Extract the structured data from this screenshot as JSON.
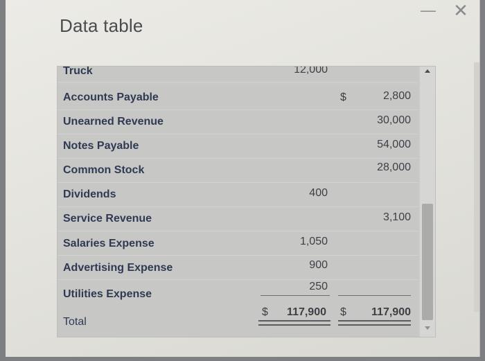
{
  "dialog": {
    "title": "Data table"
  },
  "window_controls": {
    "minimize": "—",
    "close": "✕"
  },
  "table": {
    "rows": [
      {
        "label": "Truck",
        "debit": "12,000",
        "credit": ""
      },
      {
        "label": "Accounts Payable",
        "debit": "",
        "credit_dollar": "$",
        "credit": "2,800"
      },
      {
        "label": "Unearned Revenue",
        "debit": "",
        "credit": "30,000"
      },
      {
        "label": "Notes Payable",
        "debit": "",
        "credit": "54,000"
      },
      {
        "label": "Common Stock",
        "debit": "",
        "credit": "28,000"
      },
      {
        "label": "Dividends",
        "debit": "400",
        "credit": ""
      },
      {
        "label": "Service Revenue",
        "debit": "",
        "credit": "3,100"
      },
      {
        "label": "Salaries Expense",
        "debit": "1,050",
        "credit": ""
      },
      {
        "label": "Advertising Expense",
        "debit": "900",
        "credit": ""
      },
      {
        "label": "Utilities Expense",
        "debit": "250",
        "credit": ""
      }
    ],
    "total": {
      "label": "Total",
      "debit_dollar": "$",
      "debit": "117,900",
      "credit_dollar": "$",
      "credit": "117,900"
    }
  }
}
